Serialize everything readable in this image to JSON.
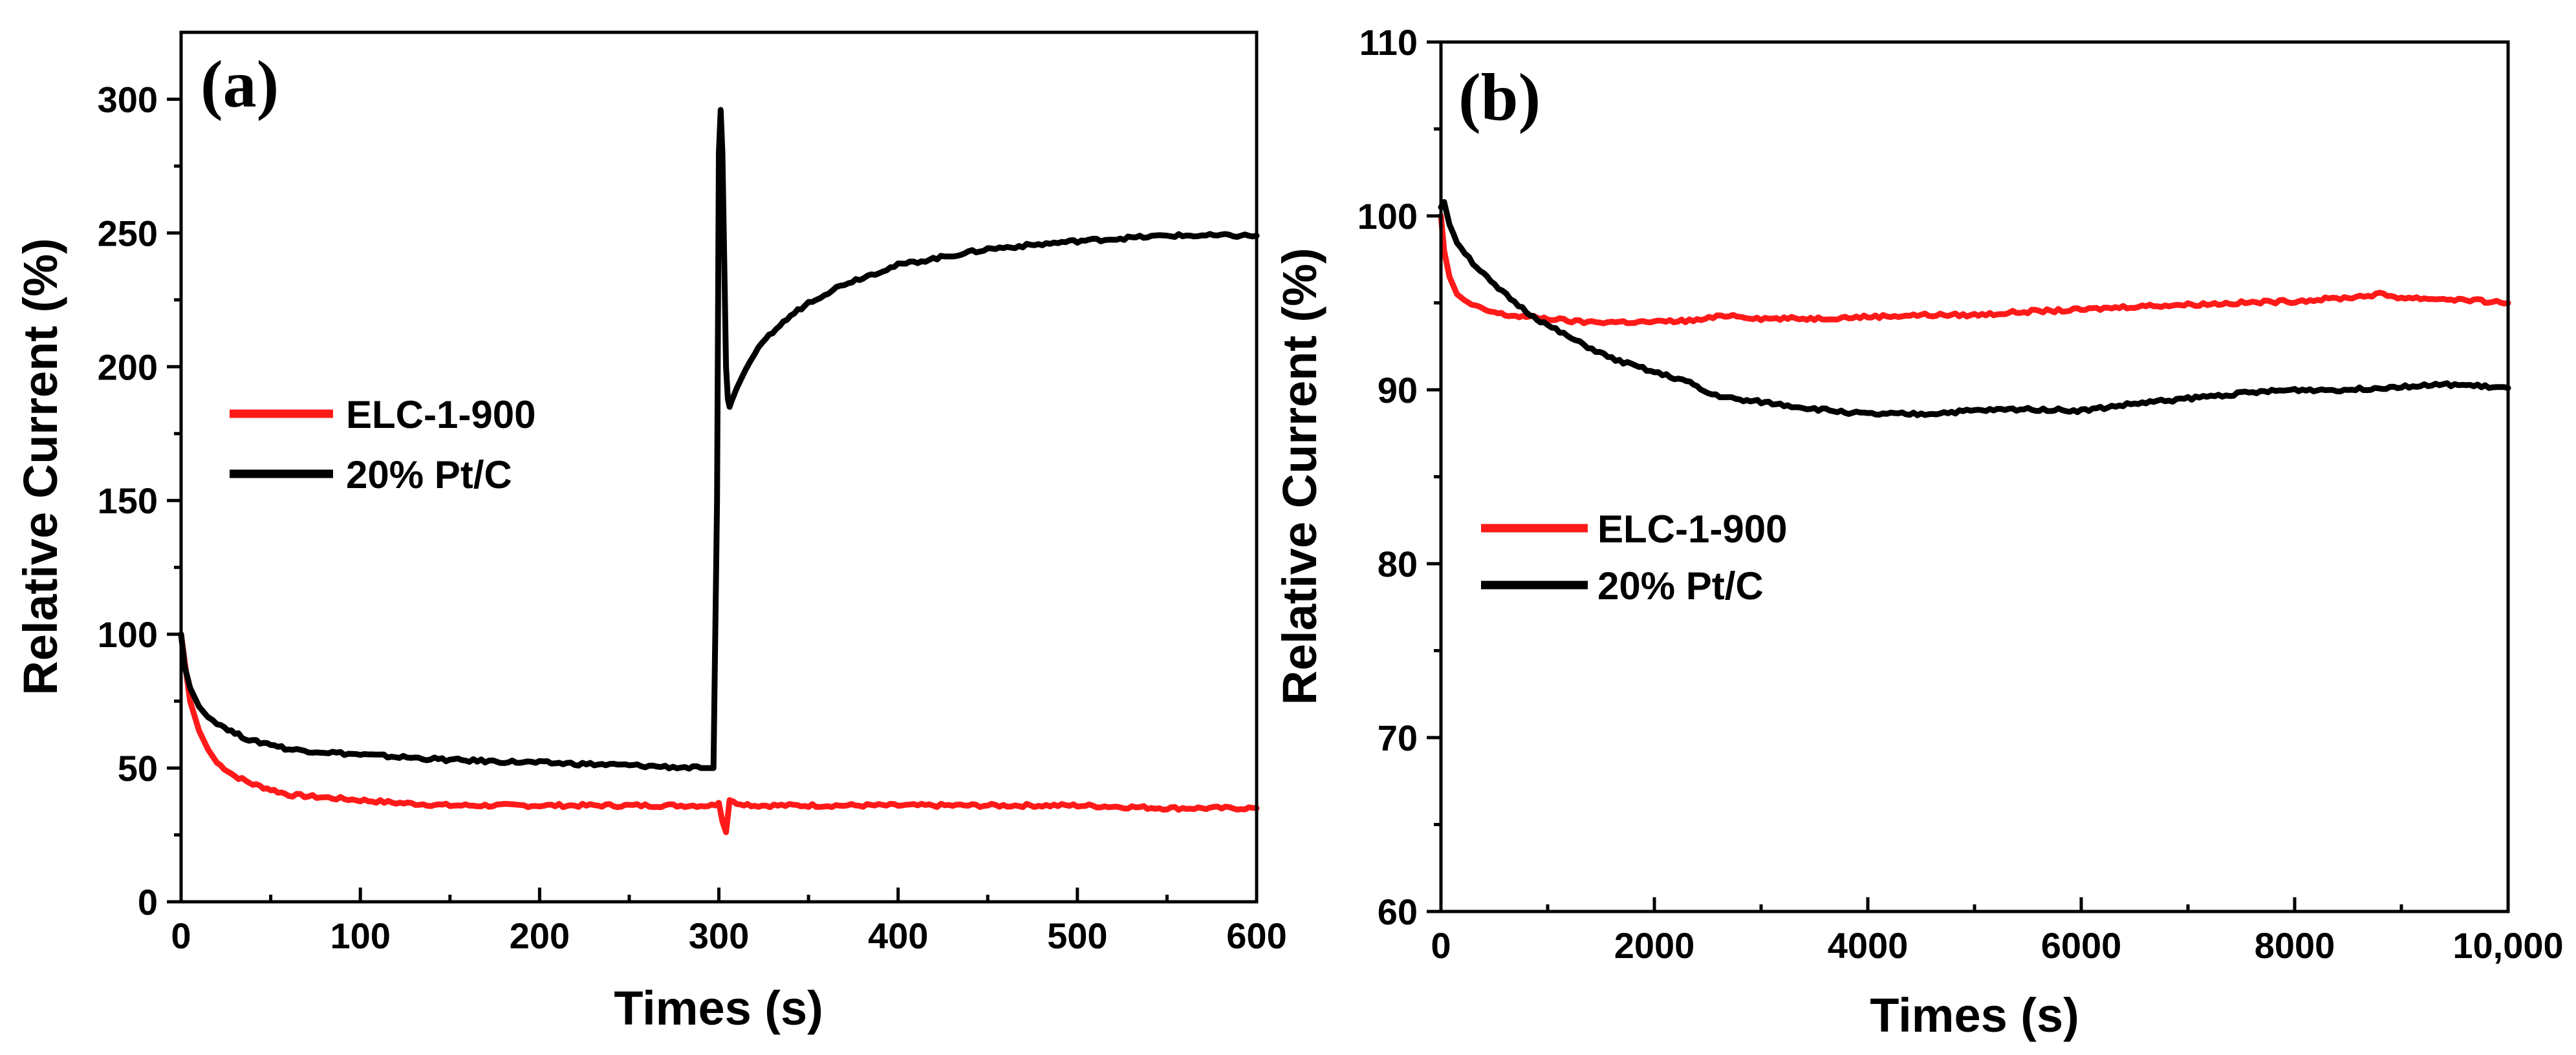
{
  "chart_data": [
    {
      "id": "a",
      "type": "line",
      "panel_label": "(a)",
      "xlabel": "Times (s)",
      "ylabel": "Relative Current (%)",
      "xlim": [
        0,
        600
      ],
      "ylim": [
        0,
        325
      ],
      "xticks": [
        0,
        100,
        200,
        300,
        400,
        500,
        600
      ],
      "yticks": [
        0,
        50,
        100,
        150,
        200,
        250,
        300
      ],
      "xtick_labels": [
        "0",
        "100",
        "200",
        "300",
        "400",
        "500",
        "600"
      ],
      "ytick_labels": [
        "0",
        "50",
        "100",
        "150",
        "200",
        "250",
        "300"
      ],
      "legend_position": "middle-left",
      "series": [
        {
          "name": "ELC-1-900",
          "color": "#ff1a1a",
          "x": [
            0,
            2,
            5,
            10,
            15,
            20,
            30,
            40,
            50,
            60,
            80,
            100,
            120,
            150,
            200,
            250,
            290,
            298,
            300,
            302,
            304,
            306,
            310,
            320,
            350,
            400,
            450,
            500,
            550,
            600
          ],
          "y": [
            100,
            90,
            75,
            64,
            57,
            52,
            47,
            44,
            42,
            40,
            39,
            38,
            37,
            36,
            36,
            36,
            36,
            36,
            37,
            30,
            26,
            38,
            37,
            36,
            36,
            36,
            36,
            36,
            35,
            35
          ]
        },
        {
          "name": "20% Pt/C",
          "color": "#000000",
          "x": [
            0,
            2,
            5,
            10,
            15,
            20,
            30,
            40,
            50,
            60,
            80,
            100,
            150,
            200,
            250,
            290,
            297,
            299,
            300,
            301,
            302,
            303,
            304,
            305,
            306,
            307,
            310,
            315,
            320,
            330,
            340,
            350,
            370,
            400,
            450,
            500,
            550,
            600
          ],
          "y": [
            100,
            88,
            80,
            73,
            69,
            67,
            63,
            60,
            59,
            57,
            56,
            55,
            53,
            52,
            51,
            50,
            50,
            150,
            280,
            296,
            280,
            240,
            200,
            188,
            185,
            187,
            192,
            199,
            205,
            213,
            219,
            224,
            231,
            238,
            244,
            247,
            249,
            249
          ]
        }
      ]
    },
    {
      "id": "b",
      "type": "line",
      "panel_label": "(b)",
      "xlabel": "Times (s)",
      "ylabel": "Relative Current (%)",
      "xlim": [
        0,
        10000
      ],
      "ylim": [
        60,
        110
      ],
      "xticks": [
        0,
        2000,
        4000,
        6000,
        8000,
        10000
      ],
      "yticks": [
        60,
        70,
        80,
        90,
        100,
        110
      ],
      "xtick_labels": [
        "0",
        "2000",
        "4000",
        "6000",
        "8000",
        "10,000"
      ],
      "ytick_labels": [
        "60",
        "70",
        "80",
        "90",
        "100",
        "110"
      ],
      "legend_position": "middle-left",
      "series": [
        {
          "name": "ELC-1-900",
          "color": "#ff1a1a",
          "x": [
            0,
            30,
            80,
            150,
            250,
            400,
            600,
            800,
            1000,
            1300,
            1600,
            2000,
            2400,
            2700,
            3000,
            3500,
            4000,
            4500,
            5000,
            5500,
            6000,
            6500,
            7000,
            7500,
            8000,
            8500,
            8800,
            9000,
            9500,
            10000
          ],
          "y": [
            100,
            98,
            96.5,
            95.5,
            95,
            94.6,
            94.3,
            94.2,
            94.1,
            93.9,
            93.9,
            93.9,
            94,
            94.3,
            94.1,
            94.1,
            94.2,
            94.3,
            94.3,
            94.5,
            94.6,
            94.8,
            94.9,
            95,
            95.1,
            95.3,
            95.5,
            95.3,
            95.2,
            95
          ]
        },
        {
          "name": "20% Pt/C",
          "color": "#000000",
          "x": [
            0,
            30,
            80,
            150,
            300,
            500,
            800,
            1000,
            1300,
            1600,
            2000,
            2300,
            2500,
            2800,
            3000,
            3500,
            4000,
            4500,
            5000,
            5500,
            6000,
            6500,
            7000,
            7500,
            8000,
            8500,
            9000,
            9500,
            10000
          ],
          "y": [
            100.5,
            100.8,
            99.5,
            98.5,
            97.3,
            96,
            94.5,
            93.7,
            92.7,
            91.8,
            91,
            90.5,
            89.8,
            89.4,
            89.3,
            88.9,
            88.6,
            88.6,
            88.8,
            88.9,
            88.8,
            89.2,
            89.5,
            89.8,
            90,
            90,
            90.2,
            90.3,
            90.1
          ]
        }
      ]
    }
  ]
}
